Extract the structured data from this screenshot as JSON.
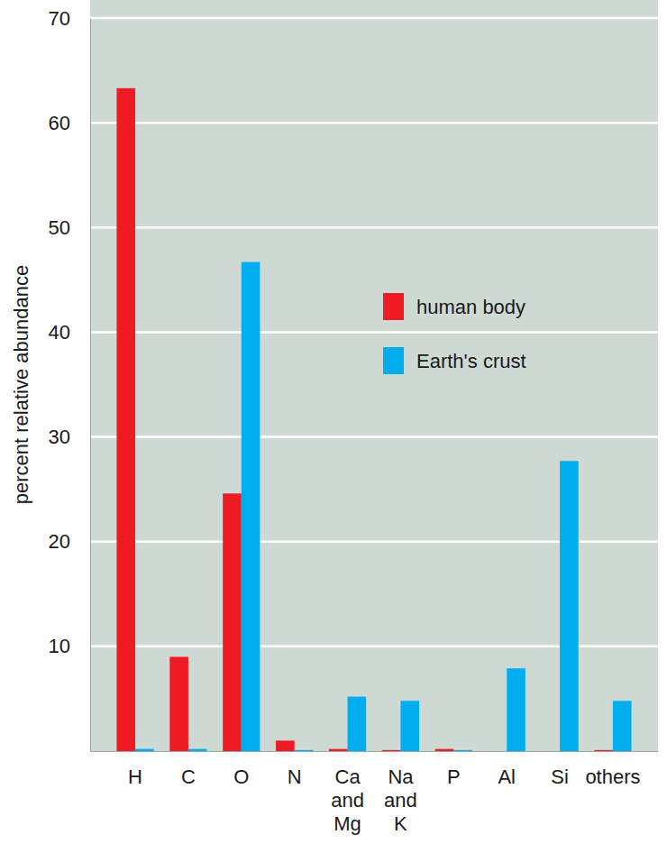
{
  "chart_data": {
    "type": "bar",
    "y_label": "percent relative abundance",
    "categories": [
      "H",
      "C",
      "O",
      "N",
      "Ca and Mg",
      "Na and K",
      "P",
      "Al",
      "Si",
      "others"
    ],
    "series": [
      {
        "name": "human body",
        "color": "#ed1c24",
        "values": [
          63.3,
          9.0,
          24.6,
          1.0,
          0.2,
          0.1,
          0.2,
          0,
          0,
          0.1
        ]
      },
      {
        "name": "Earth's crust",
        "color": "#00aeef",
        "values": [
          0.2,
          0.2,
          46.7,
          0.1,
          5.2,
          4.8,
          0.1,
          7.9,
          27.7,
          4.8
        ]
      }
    ],
    "ylim": [
      0,
      70
    ],
    "yticks": [
      10,
      20,
      30,
      40,
      50,
      60,
      70
    ],
    "grid": true,
    "legend": "right"
  }
}
